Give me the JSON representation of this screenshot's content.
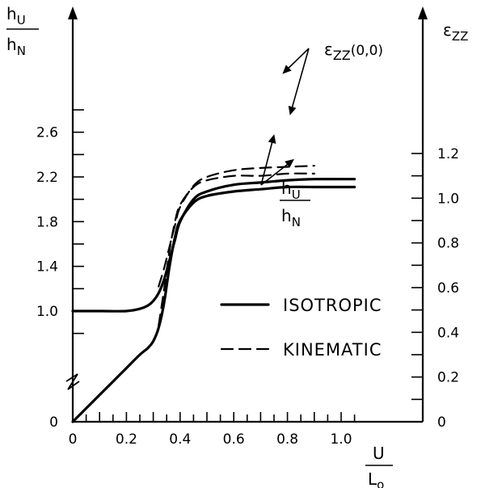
{
  "chart_data": {
    "type": "line",
    "left_axis": {
      "label_num": "h",
      "label_num_sub": "U",
      "label_den": "h",
      "label_den_sub": "N",
      "ticks": [
        "0",
        "1.0",
        "1.4",
        "1.8",
        "2.2",
        "2.6"
      ],
      "axis_break": true
    },
    "right_axis": {
      "label": "ε",
      "label_sub": "ZZ",
      "range": [
        0,
        1.2
      ],
      "ticks": [
        "0",
        "0.2",
        "0.4",
        "0.6",
        "0.8",
        "1.0",
        "1.2"
      ]
    },
    "x_axis": {
      "label_num": "U",
      "label_den": "L",
      "label_den_sub": "o",
      "range": [
        0,
        1.0
      ],
      "ticks": [
        "0",
        "0.2",
        "0.4",
        "0.6",
        "0.8",
        "1.0"
      ]
    },
    "annotations": [
      {
        "text": "ε",
        "sub": "ZZ",
        "suffix": "(0,0)"
      },
      {
        "text_num": "h",
        "num_sub": "U",
        "text_den": "h",
        "den_sub": "N"
      }
    ],
    "legend": [
      {
        "label": "ISOTROPIC",
        "style": "solid"
      },
      {
        "label": "KINEMATIC",
        "style": "dashed"
      }
    ],
    "series": [
      {
        "name": "ISOTROPIC",
        "quantity": "hU/hN",
        "axis": "left",
        "style": "solid",
        "x": [
          0,
          0.1,
          0.2,
          0.25,
          0.28,
          0.3,
          0.32,
          0.34,
          0.36,
          0.38,
          0.4,
          0.45,
          0.5,
          0.6,
          0.7,
          0.8,
          0.9,
          1.05
        ],
        "y": [
          1.0,
          1.0,
          1.0,
          1.02,
          1.05,
          1.09,
          1.16,
          1.28,
          1.45,
          1.63,
          1.8,
          2.0,
          2.07,
          2.13,
          2.15,
          2.17,
          2.18,
          2.18
        ]
      },
      {
        "name": "KINEMATIC",
        "quantity": "hU/hN",
        "axis": "left",
        "style": "dashed",
        "x": [
          0.32,
          0.34,
          0.36,
          0.38,
          0.4,
          0.45,
          0.5,
          0.6,
          0.7,
          0.8,
          0.9
        ],
        "y": [
          1.22,
          1.38,
          1.57,
          1.76,
          1.93,
          2.12,
          2.2,
          2.26,
          2.28,
          2.29,
          2.3
        ]
      },
      {
        "name": "ISOTROPIC",
        "quantity": "εZZ(0,0)",
        "axis": "right",
        "style": "solid",
        "x": [
          0,
          0.05,
          0.1,
          0.15,
          0.2,
          0.25,
          0.28,
          0.3,
          0.32,
          0.34,
          0.36,
          0.38,
          0.4,
          0.45,
          0.5,
          0.6,
          0.7,
          0.8,
          0.9,
          1.05
        ],
        "y": [
          0,
          0.06,
          0.12,
          0.18,
          0.24,
          0.3,
          0.33,
          0.36,
          0.42,
          0.53,
          0.69,
          0.82,
          0.9,
          0.98,
          1.01,
          1.03,
          1.04,
          1.05,
          1.05,
          1.05
        ]
      },
      {
        "name": "KINEMATIC",
        "quantity": "εZZ(0,0)",
        "axis": "right",
        "style": "dashed",
        "x": [
          0.32,
          0.34,
          0.36,
          0.38,
          0.4,
          0.45,
          0.5,
          0.6,
          0.7,
          0.8,
          0.9
        ],
        "y": [
          0.43,
          0.59,
          0.76,
          0.89,
          0.97,
          1.05,
          1.08,
          1.1,
          1.1,
          1.11,
          1.11
        ]
      }
    ]
  }
}
